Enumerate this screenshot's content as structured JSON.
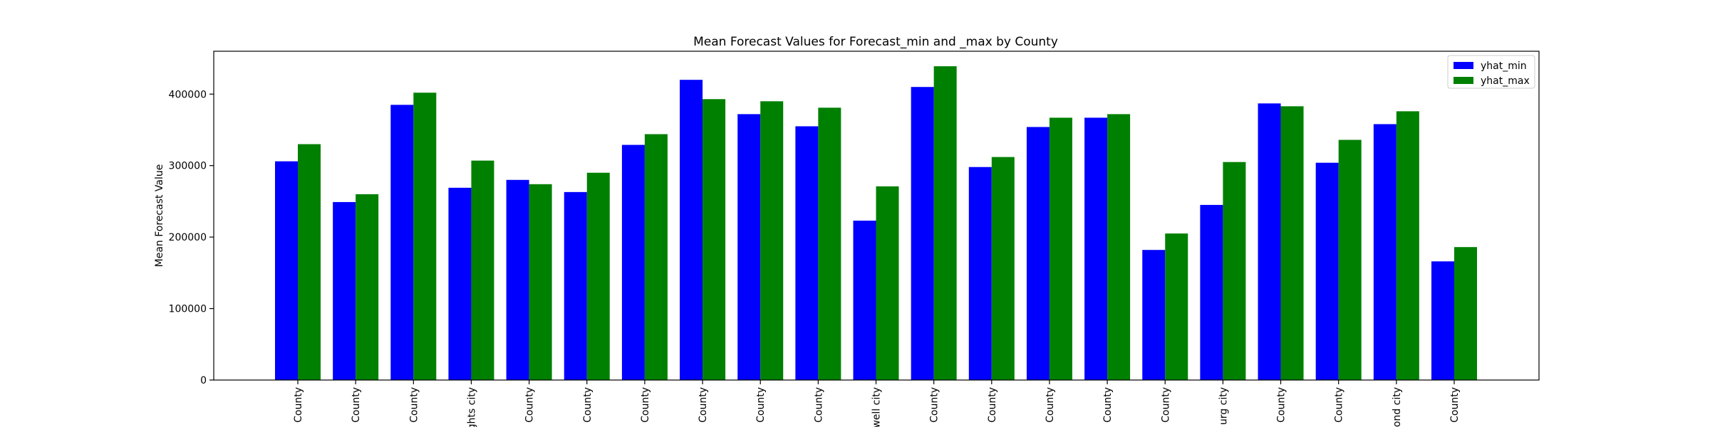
{
  "chart_data": {
    "type": "bar",
    "title": "Mean Forecast Values for Forecast_min and _max by County",
    "xlabel": "",
    "ylabel": "Mean Forecast Value",
    "ylim": [
      0,
      460000
    ],
    "yticks": [
      0,
      100000,
      200000,
      300000,
      400000
    ],
    "ytick_labels": [
      "0",
      "100000",
      "200000",
      "300000",
      "400000"
    ],
    "categories": [
      "County",
      "County",
      "County",
      "ghts city",
      "County",
      "County",
      "County",
      "County",
      "County",
      "County",
      "well city",
      "County",
      "County",
      "County",
      "County",
      "County",
      "urg city",
      "County",
      "County",
      "ond city",
      "County"
    ],
    "series": [
      {
        "name": "yhat_min",
        "color": "#0000ff",
        "values": [
          306000,
          249000,
          385000,
          269000,
          280000,
          263000,
          329000,
          420000,
          372000,
          355000,
          223000,
          410000,
          298000,
          354000,
          367000,
          182000,
          245000,
          387000,
          304000,
          358000,
          166000
        ]
      },
      {
        "name": "yhat_max",
        "color": "#008000",
        "values": [
          330000,
          260000,
          402000,
          307000,
          274000,
          290000,
          344000,
          393000,
          390000,
          381000,
          271000,
          439000,
          312000,
          367000,
          372000,
          205000,
          305000,
          383000,
          336000,
          376000,
          186000
        ]
      }
    ],
    "legend_position": "top-right",
    "grid": false
  }
}
